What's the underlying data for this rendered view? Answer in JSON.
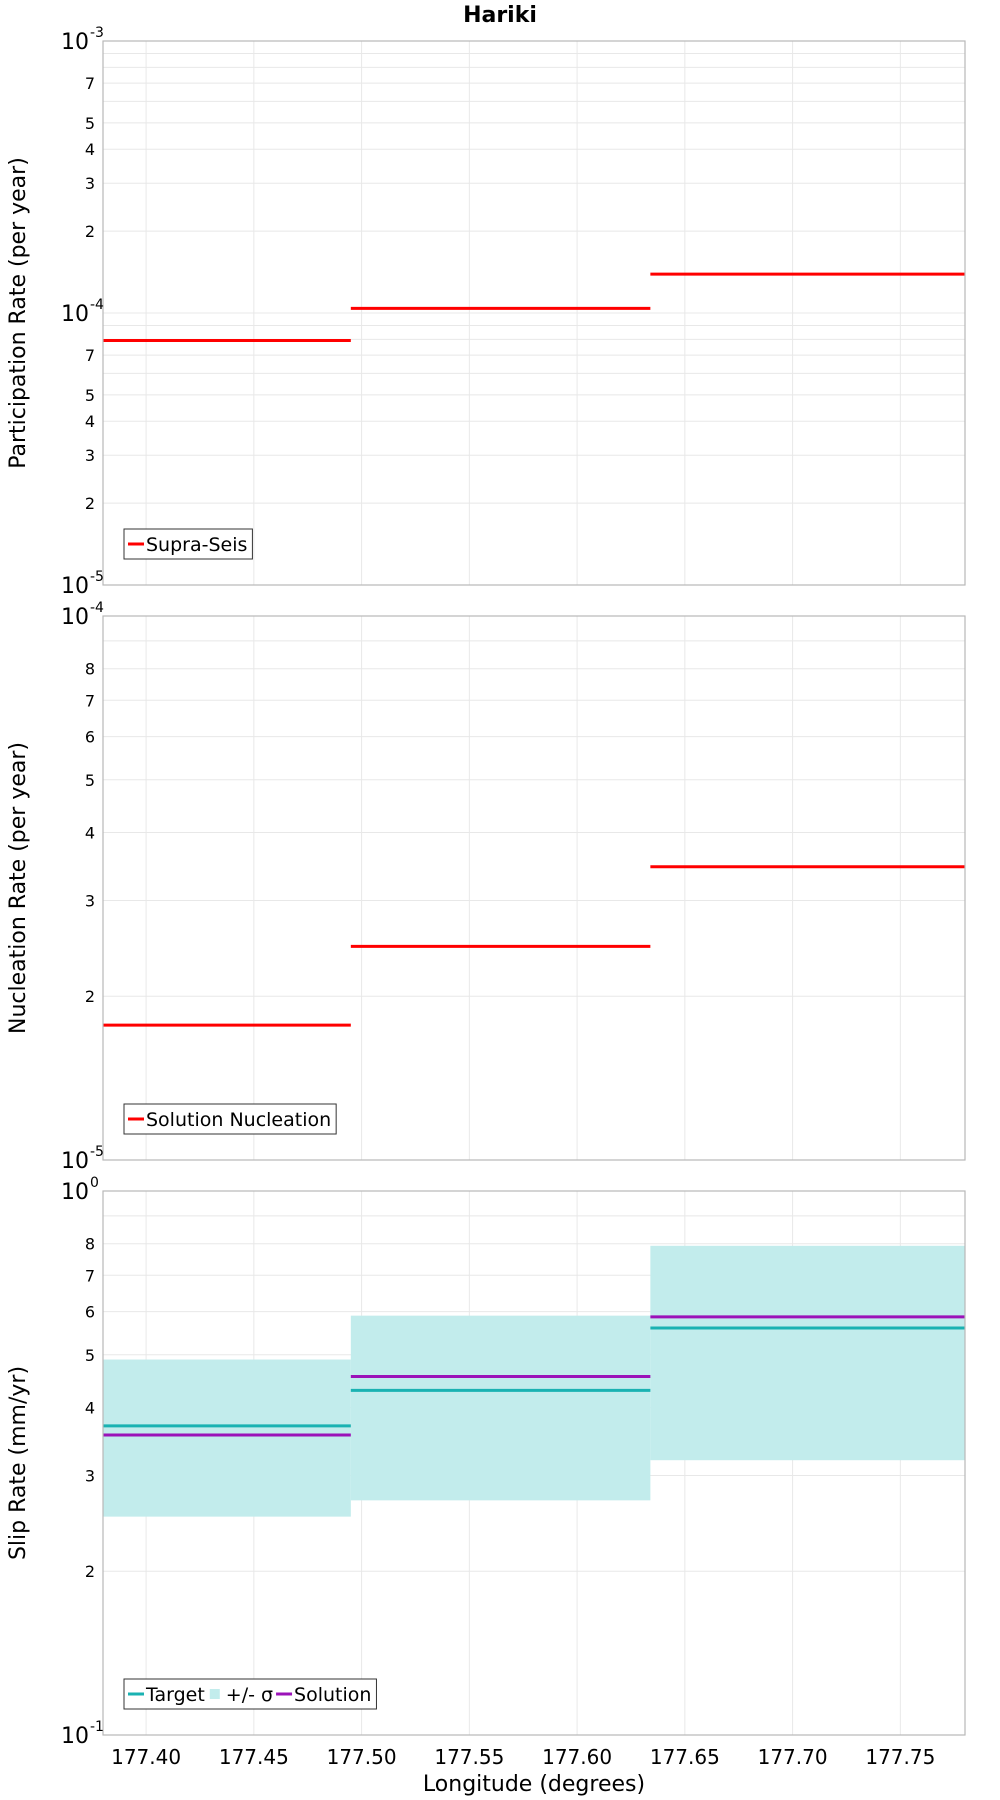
{
  "title": "Hariki",
  "xlabel": "Longitude (degrees)",
  "colors": {
    "supra": "#ff0000",
    "target": "#1ab2b2",
    "sigma": "#c2ecec",
    "solution": "#9b12b8"
  },
  "chart_data": [
    {
      "type": "line",
      "xlabel": "Longitude (degrees)",
      "ylabel": "Participation Rate (per year)",
      "xlim": [
        177.38,
        177.78
      ],
      "xticks": [
        "177.40",
        "177.45",
        "177.50",
        "177.55",
        "177.60",
        "177.65",
        "177.70",
        "177.75"
      ],
      "yscale": "log",
      "ylim": [
        1e-05,
        0.001
      ],
      "ymajor": [
        {
          "base": "10",
          "exp": "-5"
        },
        {
          "base": "10",
          "exp": "-4"
        },
        {
          "base": "10",
          "exp": "-3"
        }
      ],
      "yminor": [
        "2",
        "3",
        "4",
        "5",
        "7",
        "2",
        "3",
        "4",
        "5",
        "7"
      ],
      "legend": "bottom-left",
      "series": [
        {
          "name": "Supra-Seis",
          "color": "#ff0000",
          "segments": [
            {
              "x0": 177.38,
              "x1": 177.495,
              "y": 7.92e-05
            },
            {
              "x0": 177.495,
              "x1": 177.634,
              "y": 0.000104
            },
            {
              "x0": 177.634,
              "x1": 177.78,
              "y": 0.000139
            }
          ]
        }
      ]
    },
    {
      "type": "line",
      "xlabel": "Longitude (degrees)",
      "ylabel": "Nucleation Rate (per year)",
      "xlim": [
        177.38,
        177.78
      ],
      "yscale": "log",
      "ylim": [
        1e-05,
        0.0001
      ],
      "ymajor": [
        {
          "base": "10",
          "exp": "-5"
        },
        {
          "base": "10",
          "exp": "-4"
        }
      ],
      "yminor": [
        "2",
        "3",
        "4",
        "5",
        "6",
        "7",
        "8"
      ],
      "legend": "bottom-left",
      "series": [
        {
          "name": "Solution Nucleation",
          "color": "#ff0000",
          "segments": [
            {
              "x0": 177.38,
              "x1": 177.495,
              "y": 1.77e-05
            },
            {
              "x0": 177.495,
              "x1": 177.634,
              "y": 2.47e-05
            },
            {
              "x0": 177.634,
              "x1": 177.78,
              "y": 3.46e-05
            }
          ]
        }
      ]
    },
    {
      "type": "line",
      "xlabel": "Longitude (degrees)",
      "ylabel": "Slip Rate (mm/yr)",
      "xlim": [
        177.38,
        177.78
      ],
      "yscale": "log",
      "ylim": [
        0.1,
        1
      ],
      "ymajor": [
        {
          "base": "10",
          "exp": "-1"
        },
        {
          "base": "10",
          "exp": "0"
        }
      ],
      "yminor": [
        "2",
        "3",
        "4",
        "5",
        "6",
        "7",
        "8"
      ],
      "legend": "bottom-left",
      "band": {
        "name": "+/- σ",
        "color": "#c2ecec",
        "segments": [
          {
            "x0": 177.38,
            "x1": 177.495,
            "lo": 0.252,
            "hi": 0.49
          },
          {
            "x0": 177.495,
            "x1": 177.634,
            "lo": 0.27,
            "hi": 0.59
          },
          {
            "x0": 177.634,
            "x1": 177.78,
            "lo": 0.32,
            "hi": 0.793
          }
        ]
      },
      "series": [
        {
          "name": "Target",
          "color": "#1ab2b2",
          "segments": [
            {
              "x0": 177.38,
              "x1": 177.495,
              "y": 0.37
            },
            {
              "x0": 177.495,
              "x1": 177.634,
              "y": 0.43
            },
            {
              "x0": 177.634,
              "x1": 177.78,
              "y": 0.56
            }
          ]
        },
        {
          "name": "Solution",
          "color": "#9b12b8",
          "segments": [
            {
              "x0": 177.38,
              "x1": 177.495,
              "y": 0.356
            },
            {
              "x0": 177.495,
              "x1": 177.634,
              "y": 0.456
            },
            {
              "x0": 177.634,
              "x1": 177.78,
              "y": 0.587
            }
          ]
        }
      ]
    }
  ]
}
